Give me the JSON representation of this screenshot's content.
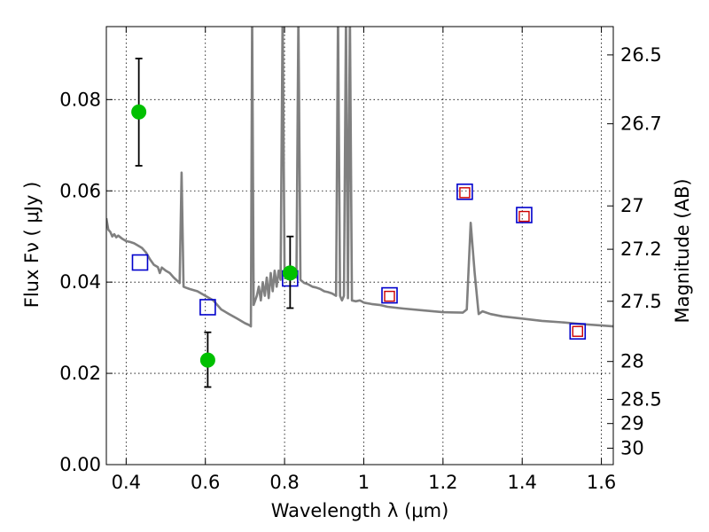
{
  "chart_data": {
    "type": "scatter",
    "xlabel": "Wavelength  λ (μm)",
    "ylabel": "Flux  Fν  ( μJy )",
    "ylabel_right": "Magnitude (AB)",
    "xlim": [
      0.35,
      1.63
    ],
    "ylim": [
      0.0,
      0.096
    ],
    "grid": true,
    "x_ticks": [
      {
        "value": 0.4,
        "label": "0.4"
      },
      {
        "value": 0.6,
        "label": "0.6"
      },
      {
        "value": 0.8,
        "label": "0.8"
      },
      {
        "value": 1.0,
        "label": "1"
      },
      {
        "value": 1.2,
        "label": "1.2"
      },
      {
        "value": 1.4,
        "label": "1.4"
      },
      {
        "value": 1.6,
        "label": "1.6"
      }
    ],
    "y_ticks": [
      {
        "value": 0.0,
        "label": "0.00"
      },
      {
        "value": 0.02,
        "label": "0.02"
      },
      {
        "value": 0.04,
        "label": "0.04"
      },
      {
        "value": 0.06,
        "label": "0.06"
      },
      {
        "value": 0.08,
        "label": "0.08"
      }
    ],
    "mag_ticks": [
      {
        "label": "26.5",
        "flux": 0.0898
      },
      {
        "label": "26.7",
        "flux": 0.0747
      },
      {
        "label": "27",
        "flux": 0.0567
      },
      {
        "label": "27.2",
        "flux": 0.0472
      },
      {
        "label": "27.5",
        "flux": 0.0358
      },
      {
        "label": "28",
        "flux": 0.0226
      },
      {
        "label": "28.5",
        "flux": 0.0143
      },
      {
        "label": "29",
        "flux": 0.009
      },
      {
        "label": "30",
        "flux": 0.0036
      }
    ],
    "series": [
      {
        "kind": "model_spectrum",
        "color": "#808080",
        "points": [
          [
            0.35,
            0.054
          ],
          [
            0.355,
            0.0515
          ],
          [
            0.36,
            0.051
          ],
          [
            0.365,
            0.05
          ],
          [
            0.37,
            0.0505
          ],
          [
            0.375,
            0.0498
          ],
          [
            0.38,
            0.0502
          ],
          [
            0.39,
            0.0495
          ],
          [
            0.4,
            0.049
          ],
          [
            0.41,
            0.0488
          ],
          [
            0.42,
            0.0485
          ],
          [
            0.43,
            0.048
          ],
          [
            0.44,
            0.0475
          ],
          [
            0.45,
            0.0465
          ],
          [
            0.46,
            0.045
          ],
          [
            0.47,
            0.0438
          ],
          [
            0.48,
            0.0433
          ],
          [
            0.485,
            0.042
          ],
          [
            0.49,
            0.0432
          ],
          [
            0.5,
            0.0425
          ],
          [
            0.51,
            0.042
          ],
          [
            0.52,
            0.041
          ],
          [
            0.53,
            0.0402
          ],
          [
            0.535,
            0.0398
          ],
          [
            0.54,
            0.064
          ],
          [
            0.545,
            0.039
          ],
          [
            0.55,
            0.0388
          ],
          [
            0.56,
            0.0385
          ],
          [
            0.58,
            0.038
          ],
          [
            0.6,
            0.037
          ],
          [
            0.62,
            0.036
          ],
          [
            0.64,
            0.034
          ],
          [
            0.66,
            0.033
          ],
          [
            0.68,
            0.032
          ],
          [
            0.7,
            0.031
          ],
          [
            0.71,
            0.0306
          ],
          [
            0.715,
            0.0303
          ],
          [
            0.718,
            0.099
          ],
          [
            0.722,
            0.035
          ],
          [
            0.73,
            0.037
          ],
          [
            0.735,
            0.039
          ],
          [
            0.74,
            0.036
          ],
          [
            0.745,
            0.04
          ],
          [
            0.75,
            0.037
          ],
          [
            0.755,
            0.041
          ],
          [
            0.76,
            0.0365
          ],
          [
            0.765,
            0.042
          ],
          [
            0.77,
            0.038
          ],
          [
            0.775,
            0.0425
          ],
          [
            0.78,
            0.039
          ],
          [
            0.785,
            0.0425
          ],
          [
            0.79,
            0.0405
          ],
          [
            0.795,
            0.099
          ],
          [
            0.8,
            0.042
          ],
          [
            0.805,
            0.0422
          ],
          [
            0.81,
            0.0425
          ],
          [
            0.82,
            0.0415
          ],
          [
            0.83,
            0.041
          ],
          [
            0.835,
            0.099
          ],
          [
            0.84,
            0.0405
          ],
          [
            0.85,
            0.0398
          ],
          [
            0.86,
            0.0395
          ],
          [
            0.87,
            0.039
          ],
          [
            0.88,
            0.0388
          ],
          [
            0.89,
            0.0385
          ],
          [
            0.9,
            0.038
          ],
          [
            0.91,
            0.0378
          ],
          [
            0.92,
            0.0375
          ],
          [
            0.93,
            0.037
          ],
          [
            0.935,
            0.099
          ],
          [
            0.94,
            0.037
          ],
          [
            0.945,
            0.036
          ],
          [
            0.95,
            0.037
          ],
          [
            0.955,
            0.099
          ],
          [
            0.96,
            0.0365
          ],
          [
            0.965,
            0.099
          ],
          [
            0.97,
            0.036
          ],
          [
            0.98,
            0.0358
          ],
          [
            0.99,
            0.036
          ],
          [
            1.0,
            0.0355
          ],
          [
            1.02,
            0.0352
          ],
          [
            1.04,
            0.035
          ],
          [
            1.06,
            0.0346
          ],
          [
            1.08,
            0.0344
          ],
          [
            1.1,
            0.0342
          ],
          [
            1.15,
            0.0338
          ],
          [
            1.2,
            0.0334
          ],
          [
            1.25,
            0.0333
          ],
          [
            1.26,
            0.034
          ],
          [
            1.27,
            0.053
          ],
          [
            1.28,
            0.042
          ],
          [
            1.29,
            0.033
          ],
          [
            1.3,
            0.0336
          ],
          [
            1.32,
            0.033
          ],
          [
            1.35,
            0.0325
          ],
          [
            1.4,
            0.032
          ],
          [
            1.45,
            0.0315
          ],
          [
            1.5,
            0.0312
          ],
          [
            1.55,
            0.0308
          ],
          [
            1.6,
            0.0305
          ],
          [
            1.63,
            0.0303
          ]
        ]
      },
      {
        "kind": "observed_flux",
        "color": "#00c000",
        "points": [
          {
            "x": 0.432,
            "y": 0.0773,
            "yerr_low": 0.0655,
            "yerr_high": 0.089
          },
          {
            "x": 0.606,
            "y": 0.0229,
            "yerr_low": 0.017,
            "yerr_high": 0.029
          },
          {
            "x": 0.814,
            "y": 0.042,
            "yerr_low": 0.0343,
            "yerr_high": 0.05
          }
        ]
      },
      {
        "kind": "model_bandpass_flux",
        "color": "#0000cc",
        "points": [
          [
            0.435,
            0.0443
          ],
          [
            0.606,
            0.0345
          ],
          [
            0.814,
            0.0408
          ],
          [
            1.065,
            0.0371
          ],
          [
            1.255,
            0.0598
          ],
          [
            1.405,
            0.0547
          ],
          [
            1.54,
            0.0292
          ]
        ]
      },
      {
        "kind": "model_bandpass_flux_inner",
        "color": "#cc0000",
        "points": [
          [
            1.065,
            0.0369
          ],
          [
            1.255,
            0.0596
          ],
          [
            1.405,
            0.0544
          ],
          [
            1.54,
            0.0292
          ]
        ]
      }
    ]
  }
}
